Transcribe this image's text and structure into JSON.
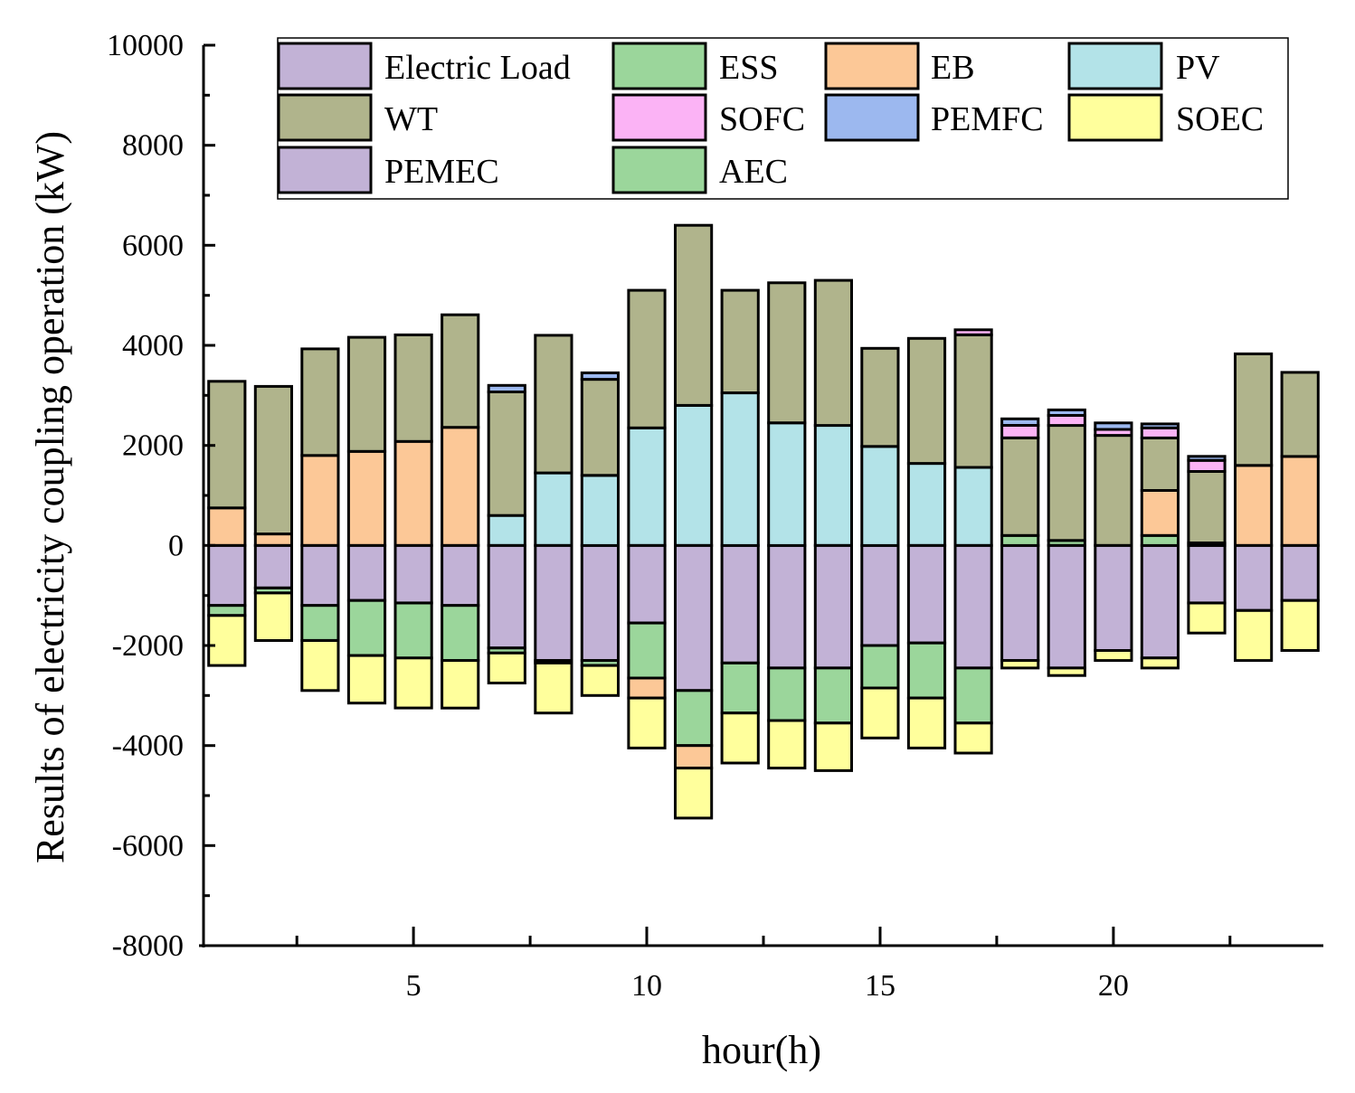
{
  "chart_data": {
    "type": "bar",
    "stacked": true,
    "title": "",
    "xlabel": "hour(h)",
    "ylabel": "Results of electricity coupling operation (kW)",
    "ylim": [
      -8000,
      10000
    ],
    "xlim": [
      0.5,
      24.5
    ],
    "yticks": [
      10000,
      8000,
      6000,
      4000,
      2000,
      0,
      -2000,
      -4000,
      -6000,
      -8000
    ],
    "ytick_labels": [
      "10000",
      "8000",
      "6000",
      "4000",
      "2000",
      "0",
      "-2000",
      "-4000",
      "-6000",
      "-8000"
    ],
    "xticks": [
      5,
      10,
      15,
      20
    ],
    "xtick_labels": [
      "5",
      "10",
      "15",
      "20"
    ],
    "grid": false,
    "legend_position": "top",
    "categories": [
      1,
      2,
      3,
      4,
      5,
      6,
      7,
      8,
      9,
      10,
      11,
      12,
      13,
      14,
      15,
      16,
      17,
      18,
      19,
      20,
      21,
      22,
      23,
      24
    ],
    "series": [
      {
        "name": "Electric Load",
        "color": "#c2b2d6",
        "values": [
          -1200,
          -850,
          -1200,
          -1100,
          -1150,
          -1200,
          -2050,
          -2300,
          -2300,
          -1550,
          -2900,
          -2350,
          -2450,
          -2450,
          -2000,
          -1950,
          -2450,
          -2300,
          -2450,
          -2100,
          -2250,
          -1150,
          -1300,
          -1100
        ]
      },
      {
        "name": "ESS",
        "color": "#9bd69b",
        "values": [
          -200,
          -100,
          -700,
          -1100,
          -1100,
          -1100,
          -100,
          -50,
          -100,
          -1100,
          -1100,
          -1000,
          -1050,
          -1100,
          -850,
          -1100,
          -1100,
          200,
          100,
          0,
          200,
          50,
          0,
          0
        ]
      },
      {
        "name": "EB",
        "color": "#fcc897",
        "values": [
          750,
          230,
          1800,
          1880,
          2080,
          2360,
          0,
          0,
          0,
          -400,
          -450,
          0,
          0,
          0,
          0,
          0,
          0,
          0,
          0,
          0,
          900,
          0,
          1600,
          1780
        ]
      },
      {
        "name": "PV",
        "color": "#b3e3e8",
        "values": [
          0,
          0,
          0,
          0,
          0,
          0,
          600,
          1450,
          1400,
          2350,
          2800,
          3050,
          2450,
          2400,
          1980,
          1640,
          1560,
          0,
          0,
          0,
          0,
          0,
          0,
          0
        ]
      },
      {
        "name": "WT",
        "color": "#b0b48c",
        "values": [
          2530,
          2950,
          2130,
          2280,
          2130,
          2250,
          2470,
          2750,
          1920,
          2750,
          3600,
          2050,
          2800,
          2900,
          1960,
          2500,
          2650,
          1950,
          2300,
          2200,
          1050,
          1430,
          2230,
          1680
        ]
      },
      {
        "name": "SOFC",
        "color": "#fbb3f5",
        "values": [
          0,
          0,
          0,
          0,
          0,
          0,
          0,
          0,
          0,
          0,
          0,
          0,
          0,
          0,
          0,
          0,
          100,
          250,
          200,
          120,
          200,
          220,
          0,
          0
        ]
      },
      {
        "name": "PEMFC",
        "color": "#9cb8ef",
        "values": [
          0,
          0,
          0,
          0,
          0,
          0,
          130,
          0,
          130,
          0,
          0,
          0,
          0,
          0,
          0,
          0,
          0,
          130,
          110,
          130,
          80,
          80,
          0,
          0
        ]
      },
      {
        "name": "SOEC",
        "color": "#ffff9c",
        "values": [
          -1000,
          -950,
          -1000,
          -950,
          -1000,
          -950,
          -600,
          -1000,
          -600,
          -1000,
          -1000,
          -1000,
          -950,
          -950,
          -1000,
          -1000,
          -600,
          -150,
          -150,
          -200,
          -200,
          -600,
          -1000,
          -1000
        ]
      },
      {
        "name": "PEMEC",
        "color": "#c2b2d6",
        "values": [
          0,
          0,
          0,
          0,
          0,
          0,
          0,
          0,
          0,
          0,
          0,
          0,
          0,
          0,
          0,
          0,
          0,
          0,
          0,
          0,
          0,
          0,
          0,
          0
        ]
      },
      {
        "name": "AEC",
        "color": "#9bd69b",
        "values": [
          0,
          0,
          0,
          0,
          0,
          0,
          0,
          0,
          0,
          0,
          0,
          0,
          0,
          0,
          0,
          0,
          0,
          0,
          0,
          0,
          0,
          0,
          0,
          0
        ]
      }
    ]
  }
}
